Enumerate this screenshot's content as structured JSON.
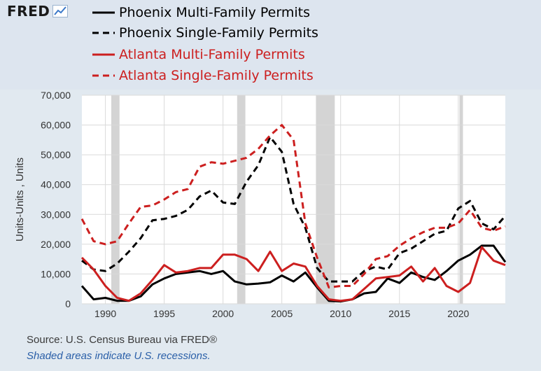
{
  "logo": {
    "text": "FRED",
    "icon": "line-chart-icon"
  },
  "legend": [
    {
      "label": "Phoenix Multi-Family Permits",
      "color": "#000000",
      "dash": false
    },
    {
      "label": "Phoenix Single-Family Permits",
      "color": "#000000",
      "dash": true
    },
    {
      "label": "Atlanta Multi-Family Permits",
      "color": "#cc1f1f",
      "dash": false
    },
    {
      "label": "Atlanta Single-Family Permits",
      "color": "#cc1f1f",
      "dash": true
    }
  ],
  "footer": {
    "source": "Source: U.S. Census Bureau via FRED®",
    "recession_note": "Shaded areas indicate U.S. recessions."
  },
  "chart_data": {
    "type": "line",
    "ylabel": "Units-Units , Units",
    "xlabel": "",
    "xlim": [
      1988,
      2024
    ],
    "ylim": [
      0,
      70000
    ],
    "x_ticks": [
      1990,
      1995,
      2000,
      2005,
      2010,
      2015,
      2020
    ],
    "y_ticks": [
      0,
      10000,
      20000,
      30000,
      40000,
      50000,
      60000,
      70000
    ],
    "y_tick_labels": [
      "0",
      "10,000",
      "20,000",
      "30,000",
      "40,000",
      "50,000",
      "60,000",
      "70,000"
    ],
    "grid": true,
    "recessions": [
      [
        1990.5,
        1991.2
      ],
      [
        2001.2,
        2001.9
      ],
      [
        2007.9,
        2009.5
      ],
      [
        2020.1,
        2020.4
      ]
    ],
    "x": [
      1988,
      1989,
      1990,
      1991,
      1992,
      1993,
      1994,
      1995,
      1996,
      1997,
      1998,
      1999,
      2000,
      2001,
      2002,
      2003,
      2004,
      2005,
      2006,
      2007,
      2008,
      2009,
      2010,
      2011,
      2012,
      2013,
      2014,
      2015,
      2016,
      2017,
      2018,
      2019,
      2020,
      2021,
      2022,
      2023,
      2024
    ],
    "series": [
      {
        "name": "Phoenix Multi-Family Permits",
        "color": "#000000",
        "dash": false,
        "values": [
          6000,
          1500,
          2000,
          1000,
          1000,
          2500,
          6500,
          8500,
          10000,
          10500,
          11000,
          10000,
          11000,
          7500,
          6500,
          6800,
          7200,
          9500,
          7500,
          10500,
          5500,
          1000,
          800,
          1500,
          3500,
          4000,
          8500,
          7000,
          10500,
          9000,
          8000,
          11000,
          14500,
          16500,
          19500,
          19500,
          14000
        ]
      },
      {
        "name": "Phoenix Single-Family Permits",
        "color": "#000000",
        "dash": true,
        "values": [
          14500,
          11500,
          11000,
          13500,
          17500,
          22000,
          28000,
          28500,
          29500,
          31500,
          36000,
          38000,
          34000,
          33500,
          41000,
          46500,
          56000,
          51000,
          33500,
          25500,
          12000,
          7500,
          7500,
          7500,
          11000,
          12500,
          11500,
          17000,
          18500,
          21000,
          23500,
          24500,
          32000,
          34500,
          27000,
          25000,
          29500
        ]
      },
      {
        "name": "Atlanta Multi-Family Permits",
        "color": "#cc1f1f",
        "dash": false,
        "values": [
          15500,
          11500,
          6000,
          2000,
          1000,
          3500,
          8000,
          13000,
          10500,
          11000,
          12000,
          12000,
          16500,
          16500,
          15000,
          11000,
          17500,
          11000,
          13500,
          12500,
          6000,
          1500,
          1000,
          1500,
          5000,
          8500,
          9000,
          9500,
          12500,
          7500,
          12000,
          6000,
          4000,
          7000,
          19000,
          14500,
          13000
        ]
      },
      {
        "name": "Atlanta Single-Family Permits",
        "color": "#cc1f1f",
        "dash": true,
        "values": [
          28500,
          21000,
          20000,
          21000,
          27000,
          32500,
          33000,
          35000,
          37500,
          38500,
          46000,
          47500,
          47000,
          48000,
          49000,
          52000,
          56500,
          60000,
          55000,
          27000,
          15500,
          5500,
          6000,
          6000,
          10000,
          15000,
          16000,
          19500,
          22000,
          24000,
          25500,
          25500,
          27000,
          31500,
          25500,
          24500,
          26000
        ]
      }
    ]
  }
}
